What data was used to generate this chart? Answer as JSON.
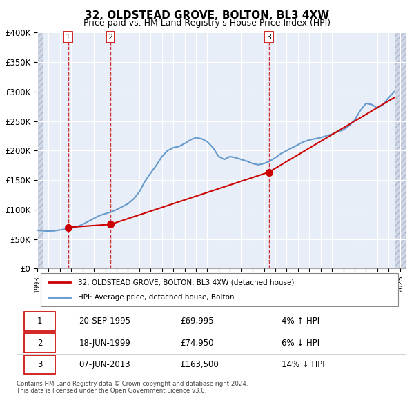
{
  "title": "32, OLDSTEAD GROVE, BOLTON, BL3 4XW",
  "subtitle": "Price paid vs. HM Land Registry's House Price Index (HPI)",
  "ylabel": "",
  "ylim": [
    0,
    400000
  ],
  "yticks": [
    0,
    50000,
    100000,
    150000,
    200000,
    250000,
    300000,
    350000,
    400000
  ],
  "ytick_labels": [
    "£0",
    "£50K",
    "£100K",
    "£150K",
    "£200K",
    "£250K",
    "£300K",
    "£350K",
    "£400K"
  ],
  "hpi_color": "#6699cc",
  "price_color": "#cc0000",
  "marker_color": "#cc0000",
  "vline_color": "#cc0000",
  "background_color": "#e8eef8",
  "hatch_color": "#c8d4e8",
  "legend_labels": [
    "32, OLDSTEAD GROVE, BOLTON, BL3 4XW (detached house)",
    "HPI: Average price, detached house, Bolton"
  ],
  "transactions": [
    {
      "label": "1",
      "date": "20-SEP-1995",
      "price": 69995,
      "pct": "4%",
      "dir": "↑",
      "x_year": 1995.72
    },
    {
      "label": "2",
      "date": "18-JUN-1999",
      "price": 74950,
      "pct": "6%",
      "dir": "↓",
      "x_year": 1999.46
    },
    {
      "label": "3",
      "date": "07-JUN-2013",
      "price": 163500,
      "pct": "14%",
      "dir": "↓",
      "x_year": 2013.43
    }
  ],
  "table_rows": [
    [
      "1",
      "20-SEP-1995",
      "£69,995",
      "4% ↑ HPI"
    ],
    [
      "2",
      "18-JUN-1999",
      "£74,950",
      "6% ↓ HPI"
    ],
    [
      "3",
      "07-JUN-2013",
      "£163,500",
      "14% ↓ HPI"
    ]
  ],
  "footer": "Contains HM Land Registry data © Crown copyright and database right 2024.\nThis data is licensed under the Open Government Licence v3.0.",
  "xmin": 1993,
  "xmax": 2025.5,
  "hpi_data": {
    "years": [
      1993.0,
      1993.5,
      1994.0,
      1994.5,
      1995.0,
      1995.5,
      1996.0,
      1996.5,
      1997.0,
      1997.5,
      1998.0,
      1998.5,
      1999.0,
      1999.5,
      2000.0,
      2000.5,
      2001.0,
      2001.5,
      2002.0,
      2002.5,
      2003.0,
      2003.5,
      2004.0,
      2004.5,
      2005.0,
      2005.5,
      2006.0,
      2006.5,
      2007.0,
      2007.5,
      2008.0,
      2008.5,
      2009.0,
      2009.5,
      2010.0,
      2010.5,
      2011.0,
      2011.5,
      2012.0,
      2012.5,
      2013.0,
      2013.5,
      2014.0,
      2014.5,
      2015.0,
      2015.5,
      2016.0,
      2016.5,
      2017.0,
      2017.5,
      2018.0,
      2018.5,
      2019.0,
      2019.5,
      2020.0,
      2020.5,
      2021.0,
      2021.5,
      2022.0,
      2022.5,
      2023.0,
      2023.5,
      2024.0,
      2024.5
    ],
    "values": [
      65000,
      64000,
      63500,
      64000,
      65500,
      67000,
      68500,
      71000,
      75000,
      80000,
      85000,
      90000,
      93000,
      96000,
      100000,
      105000,
      110000,
      118000,
      130000,
      148000,
      162000,
      175000,
      190000,
      200000,
      205000,
      207000,
      212000,
      218000,
      222000,
      220000,
      215000,
      205000,
      190000,
      185000,
      190000,
      188000,
      185000,
      182000,
      178000,
      176000,
      178000,
      182000,
      188000,
      195000,
      200000,
      205000,
      210000,
      215000,
      218000,
      220000,
      222000,
      225000,
      228000,
      232000,
      235000,
      242000,
      252000,
      268000,
      280000,
      278000,
      272000,
      278000,
      290000,
      300000
    ]
  },
  "price_line": {
    "years": [
      1995.72,
      1999.46,
      2013.43,
      2024.5
    ],
    "values": [
      69995,
      74950,
      163500,
      290000
    ]
  }
}
